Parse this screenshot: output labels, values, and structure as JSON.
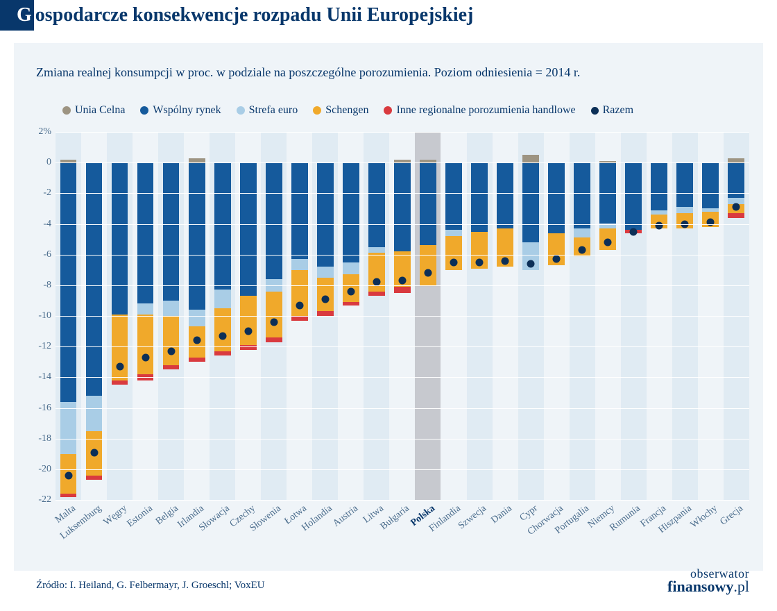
{
  "title_prefix": "G",
  "title_rest": "ospodarcze konsekwencje rozpadu Unii Europejskiej",
  "subtitle": "Zmiana realnej konsumpcji w proc. w podziale na poszczególne porozumienia. Poziom odniesienia = 2014 r.",
  "legend": [
    {
      "label": "Unia Celna",
      "color": "#9d9482"
    },
    {
      "label": "Wspólny rynek",
      "color": "#155a9c"
    },
    {
      "label": "Strefa euro",
      "color": "#a9cde6"
    },
    {
      "label": "Schengen",
      "color": "#f0a92b"
    },
    {
      "label": "Inne regionalne porozumienia handlowe",
      "color": "#d93a3f"
    },
    {
      "label": "Razem",
      "color": "#0c2f57",
      "is_dot": true
    }
  ],
  "y": {
    "min": -22,
    "max": 2,
    "step": 2,
    "percent_label_at": 2,
    "label_color": "#4a6c8c",
    "label_fontsize": 14
  },
  "grid_color": "#ffffff",
  "plot_bg_alt": "#e0ebf3",
  "plot_bg_highlight": "#c7c9cf",
  "dot_color": "#0c2f57",
  "countries": [
    {
      "name": "Malta",
      "unia": 0.2,
      "wspolny": -15.6,
      "strefa": -3.4,
      "schengen": -2.6,
      "inne": -0.2,
      "razem": -20.4
    },
    {
      "name": "Luksemburg",
      "unia": 0.0,
      "wspolny": -15.2,
      "strefa": -2.3,
      "schengen": -2.9,
      "inne": -0.3,
      "razem": -18.9
    },
    {
      "name": "Węgry",
      "unia": 0.0,
      "wspolny": -9.9,
      "strefa": 0.0,
      "schengen": -4.3,
      "inne": -0.3,
      "razem": -13.3
    },
    {
      "name": "Estonia",
      "unia": 0.0,
      "wspolny": -9.2,
      "strefa": -0.7,
      "schengen": -3.9,
      "inne": -0.4,
      "razem": -12.7
    },
    {
      "name": "Belgia",
      "unia": 0.0,
      "wspolny": -9.0,
      "strefa": -1.0,
      "schengen": -3.2,
      "inne": -0.3,
      "razem": -12.3
    },
    {
      "name": "Irlandia",
      "unia": 0.3,
      "wspolny": -9.6,
      "strefa": -1.1,
      "schengen": -2.0,
      "inne": -0.3,
      "razem": -11.6
    },
    {
      "name": "Słowacja",
      "unia": 0.0,
      "wspolny": -8.3,
      "strefa": -1.2,
      "schengen": -2.8,
      "inne": -0.3,
      "razem": -11.3
    },
    {
      "name": "Czechy",
      "unia": 0.0,
      "wspolny": -8.7,
      "strefa": 0.0,
      "schengen": -3.2,
      "inne": -0.3,
      "razem": -11.0
    },
    {
      "name": "Słowenia",
      "unia": 0.0,
      "wspolny": -7.6,
      "strefa": -0.8,
      "schengen": -3.0,
      "inne": -0.3,
      "razem": -10.4
    },
    {
      "name": "Łotwa",
      "unia": 0.0,
      "wspolny": -6.3,
      "strefa": -0.7,
      "schengen": -3.0,
      "inne": -0.3,
      "razem": -9.3
    },
    {
      "name": "Holandia",
      "unia": 0.0,
      "wspolny": -6.8,
      "strefa": -0.7,
      "schengen": -2.2,
      "inne": -0.3,
      "razem": -8.9
    },
    {
      "name": "Austria",
      "unia": 0.0,
      "wspolny": -6.5,
      "strefa": -0.8,
      "schengen": -1.8,
      "inne": -0.2,
      "razem": -8.4
    },
    {
      "name": "Litwa",
      "unia": 0.0,
      "wspolny": -5.5,
      "strefa": -0.4,
      "schengen": -2.5,
      "inne": -0.3,
      "razem": -7.8
    },
    {
      "name": "Bułgaria",
      "unia": 0.2,
      "wspolny": -5.8,
      "strefa": 0.0,
      "schengen": -2.3,
      "inne": -0.4,
      "razem": -7.7
    },
    {
      "name": "Polska",
      "unia": 0.2,
      "wspolny": -5.4,
      "strefa": 0.0,
      "schengen": -2.6,
      "inne": 0.0,
      "razem": -7.2,
      "highlight": true
    },
    {
      "name": "Finlandia",
      "unia": 0.0,
      "wspolny": -4.4,
      "strefa": -0.4,
      "schengen": -2.2,
      "inne": 0.0,
      "razem": -6.5
    },
    {
      "name": "Szwecja",
      "unia": 0.0,
      "wspolny": -4.5,
      "strefa": 0.0,
      "schengen": -2.4,
      "inne": 0.0,
      "razem": -6.5
    },
    {
      "name": "Dania",
      "unia": 0.0,
      "wspolny": -4.3,
      "strefa": 0.0,
      "schengen": -2.5,
      "inne": 0.0,
      "razem": -6.4
    },
    {
      "name": "Cypr",
      "unia": 0.5,
      "wspolny": -5.2,
      "strefa": -1.8,
      "schengen": 0.0,
      "inne": 0.0,
      "razem": -6.6
    },
    {
      "name": "Chorwacja",
      "unia": 0.0,
      "wspolny": -4.6,
      "strefa": 0.0,
      "schengen": -2.1,
      "inne": 0.0,
      "razem": -6.3
    },
    {
      "name": "Portugalia",
      "unia": 0.0,
      "wspolny": -4.3,
      "strefa": -0.6,
      "schengen": -1.2,
      "inne": 0.0,
      "razem": -5.7
    },
    {
      "name": "Niemcy",
      "unia": 0.1,
      "wspolny": -4.0,
      "strefa": -0.3,
      "schengen": -1.4,
      "inne": 0.0,
      "razem": -5.2
    },
    {
      "name": "Rumunia",
      "unia": 0.0,
      "wspolny": -4.4,
      "strefa": 0.0,
      "schengen": 0.0,
      "inne": -0.2,
      "razem": -4.5
    },
    {
      "name": "Francja",
      "unia": 0.0,
      "wspolny": -3.1,
      "strefa": -0.3,
      "schengen": -0.9,
      "inne": 0.0,
      "razem": -4.1
    },
    {
      "name": "Hiszpania",
      "unia": 0.0,
      "wspolny": -2.9,
      "strefa": -0.4,
      "schengen": -1.0,
      "inne": 0.0,
      "razem": -4.0
    },
    {
      "name": "Włochy",
      "unia": 0.0,
      "wspolny": -3.0,
      "strefa": -0.2,
      "schengen": -1.0,
      "inne": 0.0,
      "razem": -3.9
    },
    {
      "name": "Grecja",
      "unia": 0.3,
      "wspolny": -2.3,
      "strefa": -0.4,
      "schengen": -0.6,
      "inne": -0.3,
      "razem": -2.9
    }
  ],
  "source": "Źródło: I. Heiland, G. Felbermayr, J. Groeschl; VoxEU",
  "logo_top": "obserwator",
  "logo_bot_a": "finansowy",
  "logo_bot_b": ".pl"
}
